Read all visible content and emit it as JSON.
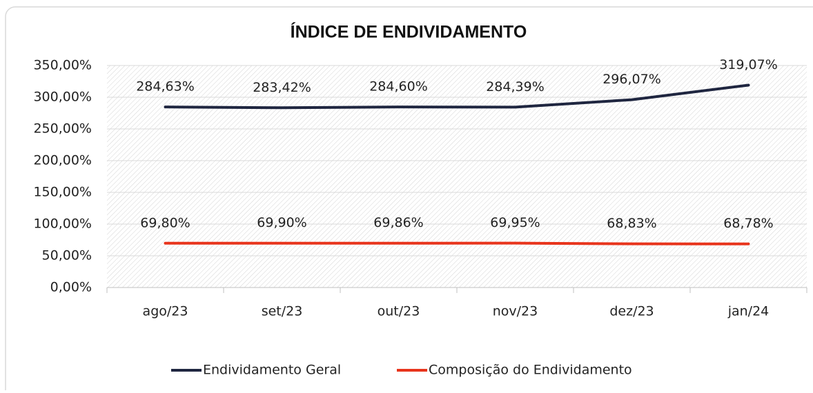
{
  "chart_data": {
    "type": "line",
    "title": "ÍNDICE DE ENDIVIDAMENTO",
    "categories": [
      "ago/23",
      "set/23",
      "out/23",
      "nov/23",
      "dez/23",
      "jan/24"
    ],
    "series": [
      {
        "name": "Endividamento Geral",
        "color": "#1f2640",
        "values": [
          284.63,
          283.42,
          284.6,
          284.39,
          296.07,
          319.07
        ],
        "value_labels": [
          "284,63%",
          "283,42%",
          "284,60%",
          "284,39%",
          "296,07%",
          "319,07%"
        ]
      },
      {
        "name": "Composição do Endividamento",
        "color": "#e8341c",
        "values": [
          69.8,
          69.9,
          69.86,
          69.95,
          68.83,
          68.78
        ],
        "value_labels": [
          "69,80%",
          "69,90%",
          "69,86%",
          "69,95%",
          "68,83%",
          "68,78%"
        ]
      }
    ],
    "ylim": [
      0,
      350
    ],
    "yticks": [
      {
        "value": 0,
        "label": "0,00%"
      },
      {
        "value": 50,
        "label": "50,00%"
      },
      {
        "value": 100,
        "label": "100,00%"
      },
      {
        "value": 150,
        "label": "150,00%"
      },
      {
        "value": 200,
        "label": "200,00%"
      },
      {
        "value": 250,
        "label": "250,00%"
      },
      {
        "value": 300,
        "label": "300,00%"
      },
      {
        "value": 350,
        "label": "350,00%"
      }
    ],
    "grid": true,
    "legend": "bottom"
  }
}
